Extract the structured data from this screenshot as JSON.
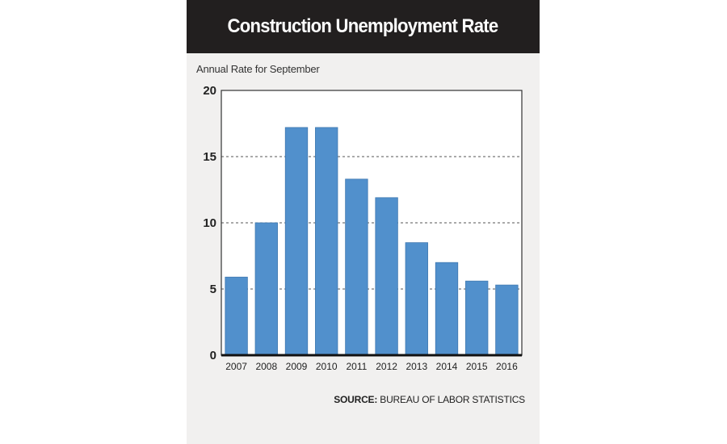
{
  "header": {
    "title": "Construction Unemployment Rate"
  },
  "subtitle": "Annual Rate for September",
  "source": {
    "label": "SOURCE:",
    "text": " BUREAU OF LABOR STATISTICS"
  },
  "colors": {
    "bar": "#5190cc",
    "bar_edge": "#3f78b0",
    "header_bg": "#221f1f",
    "card_bg": "#f1f0ef"
  },
  "chart_data": {
    "type": "bar",
    "categories": [
      "2007",
      "2008",
      "2009",
      "2010",
      "2011",
      "2012",
      "2013",
      "2014",
      "2015",
      "2016"
    ],
    "values": [
      5.9,
      10.0,
      17.2,
      17.2,
      13.3,
      11.9,
      8.5,
      7.0,
      5.6,
      5.3
    ],
    "title": "Construction Unemployment Rate",
    "subtitle": "Annual Rate for September",
    "ylim": [
      0,
      20
    ],
    "yticks": [
      "0",
      "5",
      "10",
      "15",
      "20"
    ],
    "grid": "horizontal dashed",
    "legend": "none"
  }
}
